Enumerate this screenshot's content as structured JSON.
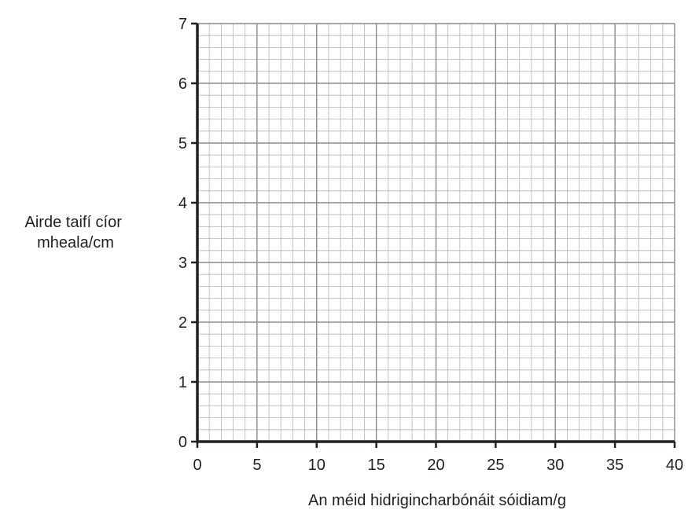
{
  "chart_data": {
    "type": "scatter",
    "title": "",
    "xlabel": "An méid hidrigincharbónáit sóidiam/g",
    "ylabel_lines": [
      "Airde taifí cíor",
      "mheala/cm"
    ],
    "xlim": [
      0,
      40
    ],
    "ylim": [
      0,
      7
    ],
    "x_ticks": [
      0,
      5,
      10,
      15,
      20,
      25,
      30,
      35,
      40
    ],
    "y_ticks": [
      0,
      1,
      2,
      3,
      4,
      5,
      6,
      7
    ],
    "grid": true,
    "series": []
  },
  "colors": {
    "axis": "#231f20",
    "major_grid": "#8a8a8a",
    "minor_grid": "#b5b5b5",
    "text": "#231f20"
  }
}
